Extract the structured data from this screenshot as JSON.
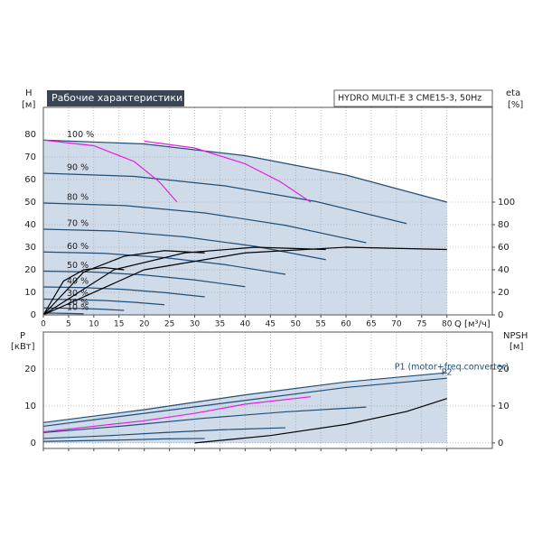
{
  "chart_data": [
    {
      "type": "line",
      "title": "Рабочие характеристики",
      "subtitle": "HYDRO MULTI-E 3 CME15-3, 50Hz",
      "y_label": "H",
      "y_unit": "[м]",
      "y2_label": "eta",
      "y2_unit": "[%]",
      "x_label": "Q [м³/ч]",
      "xlim": [
        0,
        89
      ],
      "xticks": [
        0,
        5,
        10,
        15,
        20,
        25,
        30,
        35,
        40,
        45,
        50,
        55,
        60,
        65,
        70,
        75,
        80
      ],
      "ylim": [
        0,
        92
      ],
      "yticks": [
        0,
        10,
        20,
        30,
        40,
        50,
        60,
        70,
        80
      ],
      "y2lim": [
        0,
        184
      ],
      "y2ticks": [
        0,
        20,
        40,
        60,
        80,
        100
      ],
      "grid": true,
      "band_color": "#c8d5e5",
      "series": [
        {
          "name": "100 %",
          "color": "#1f4e79",
          "x": [
            0,
            20,
            40,
            60,
            80
          ],
          "values": [
            77.5,
            75.8,
            70.6,
            62.0,
            50
          ]
        },
        {
          "name": "90 %",
          "color": "#1f4e79",
          "x": [
            0,
            18,
            36,
            54,
            72
          ],
          "values": [
            62.8,
            61.4,
            57.2,
            50.3,
            40.5
          ]
        },
        {
          "name": "80 %",
          "color": "#1f4e79",
          "x": [
            0,
            16,
            32,
            48,
            64
          ],
          "values": [
            49.6,
            48.5,
            45.2,
            39.7,
            32
          ]
        },
        {
          "name": "70 %",
          "color": "#1f4e79",
          "x": [
            0,
            14,
            28,
            42,
            56
          ],
          "values": [
            38.0,
            37.2,
            34.6,
            30.4,
            24.5
          ]
        },
        {
          "name": "60 %",
          "color": "#1f4e79",
          "x": [
            0,
            12,
            24,
            36,
            48
          ],
          "values": [
            27.9,
            27.3,
            25.4,
            22.3,
            18
          ]
        },
        {
          "name": "50 %",
          "color": "#1f4e79",
          "x": [
            0,
            10,
            20,
            30,
            40
          ],
          "values": [
            19.4,
            19.0,
            17.7,
            15.5,
            12.5
          ]
        },
        {
          "name": "40 %",
          "color": "#1f4e79",
          "x": [
            0,
            8,
            16,
            24,
            32
          ],
          "values": [
            12.4,
            12.1,
            11.3,
            9.9,
            8
          ]
        },
        {
          "name": "30 %",
          "color": "#1f4e79",
          "x": [
            0,
            6,
            12,
            18,
            24
          ],
          "values": [
            7.0,
            6.8,
            6.4,
            5.6,
            4.5
          ]
        },
        {
          "name": "20 %",
          "color": "#1f4e79",
          "x": [
            0,
            4,
            8,
            12,
            16
          ],
          "values": [
            3.1,
            3.0,
            2.8,
            2.5,
            2.0
          ]
        },
        {
          "name": "10 %",
          "color": "#1f4e79",
          "x": [
            0,
            2,
            4,
            6,
            8
          ],
          "values": [
            0.8,
            0.8,
            0.7,
            0.6,
            0.5
          ]
        },
        {
          "color": "#e020e0",
          "x": [
            0,
            10,
            18,
            23,
            26.5
          ],
          "values": [
            77.5,
            75,
            68,
            59,
            50
          ]
        },
        {
          "color": "#e020e0",
          "x": [
            20,
            30,
            40,
            47,
            53
          ],
          "values": [
            77,
            74,
            67,
            59,
            50
          ]
        },
        {
          "color": "#000000",
          "axis": "y2",
          "x": [
            0,
            20,
            40,
            60,
            80
          ],
          "values": [
            0,
            40,
            55,
            60,
            58
          ]
        },
        {
          "color": "#000000",
          "axis": "y2",
          "x": [
            0,
            14,
            28,
            42,
            56
          ],
          "values": [
            0,
            40,
            55,
            60,
            58
          ]
        },
        {
          "color": "#000000",
          "axis": "y2",
          "x": [
            0,
            8,
            16,
            24,
            32
          ],
          "values": [
            0,
            38,
            52,
            57,
            55
          ]
        },
        {
          "color": "#000000",
          "axis": "y2",
          "x": [
            0,
            4,
            8,
            12,
            16
          ],
          "values": [
            0,
            30,
            40,
            42,
            40
          ]
        }
      ]
    },
    {
      "type": "line",
      "y_label": "P",
      "y_unit": "[кВт]",
      "y2_label": "NPSH",
      "y2_unit": "[м]",
      "xlim": [
        0,
        89
      ],
      "ylim": [
        -1.5,
        30
      ],
      "yticks": [
        0,
        10,
        20
      ],
      "y2lim": [
        -1.5,
        30
      ],
      "y2ticks": [
        0,
        10,
        20
      ],
      "grid": true,
      "band_color": "#c8d5e5",
      "series": [
        {
          "name": "P1 (motor+freq.converter)",
          "color": "#1f4e79",
          "x": [
            0,
            20,
            40,
            60,
            80
          ],
          "values": [
            5.5,
            9,
            13,
            16.5,
            19
          ]
        },
        {
          "name": "P2",
          "color": "#1f4e79",
          "x": [
            0,
            20,
            40,
            60,
            80
          ],
          "values": [
            4.5,
            8,
            11.5,
            15,
            17.5
          ]
        },
        {
          "color": "#1f4e79",
          "x": [
            0,
            16,
            32,
            48,
            64
          ],
          "values": [
            2.8,
            4.6,
            6.7,
            8.4,
            9.7
          ]
        },
        {
          "color": "#1f4e79",
          "x": [
            0,
            12,
            24,
            36,
            48
          ],
          "values": [
            1.2,
            1.9,
            2.8,
            3.6,
            4.1
          ]
        },
        {
          "color": "#1f4e79",
          "x": [
            0,
            8,
            16,
            24,
            32
          ],
          "values": [
            0.4,
            0.6,
            0.8,
            1.1,
            1.2
          ]
        },
        {
          "color": "#e020e0",
          "x": [
            0,
            10,
            20,
            30,
            40,
            53
          ],
          "values": [
            3,
            4.5,
            6,
            8,
            10.5,
            12.5
          ]
        },
        {
          "color": "#000000",
          "axis": "y2",
          "x": [
            30,
            45,
            60,
            72,
            80
          ],
          "values": [
            0,
            2,
            5,
            8.5,
            12
          ]
        }
      ]
    }
  ]
}
